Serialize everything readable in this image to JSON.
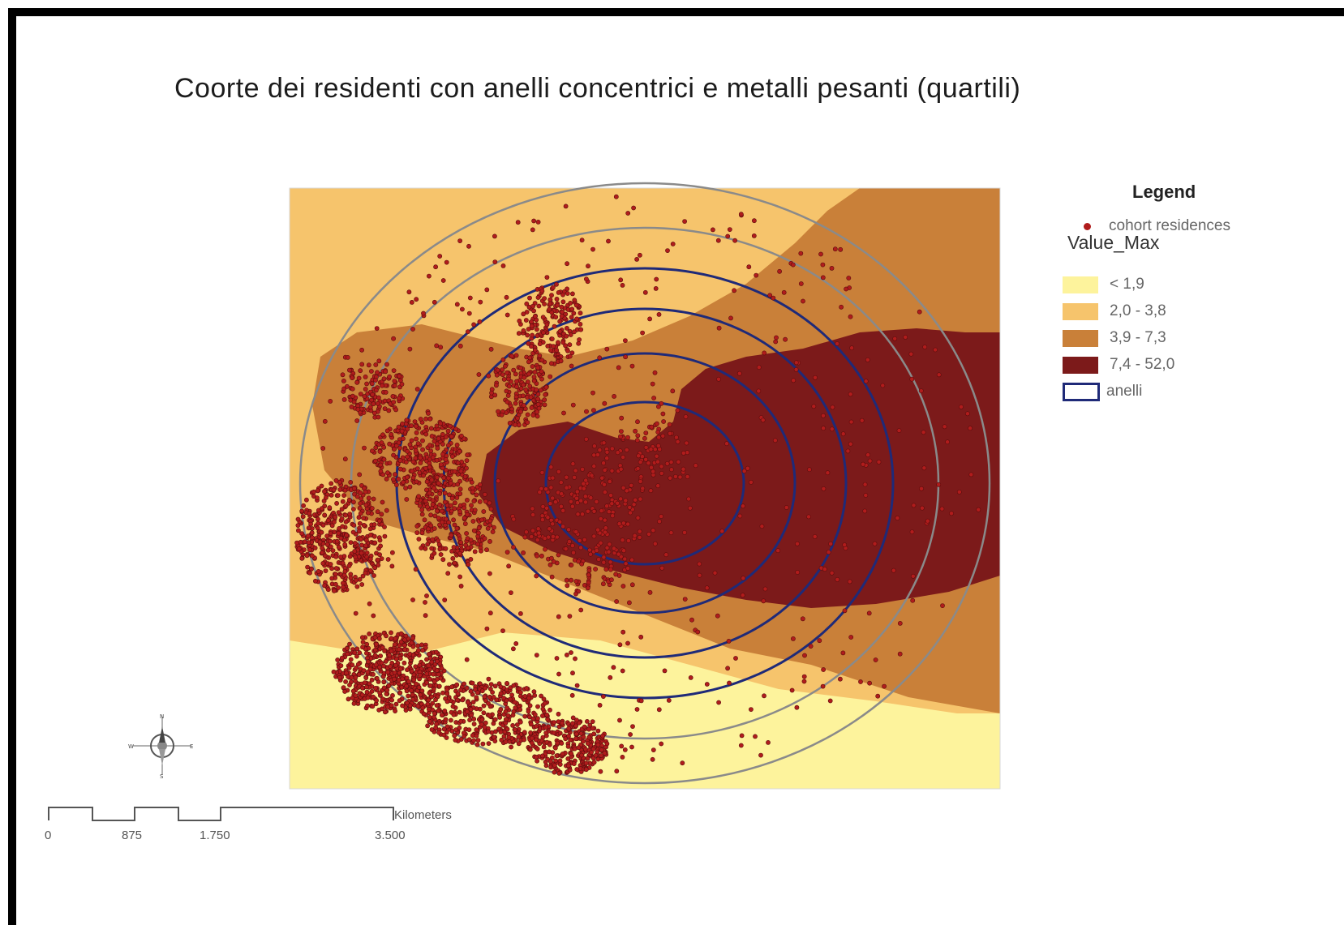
{
  "title": "Coorte dei residenti con anelli concentrici e metalli pesanti (quartili)",
  "legend": {
    "title": "Legend",
    "points_label": "cohort residences",
    "field_name": "Value_Max",
    "classes": [
      {
        "label": "< 1,9",
        "color": "#fdf39c"
      },
      {
        "label": "2,0 - 3,8",
        "color": "#f6c46c"
      },
      {
        "label": "3,9 - 7,3",
        "color": "#c98039"
      },
      {
        "label": "7,4 - 52,0",
        "color": "#7c1a1a"
      }
    ],
    "rings_label": "anelli",
    "point_color": "#b01c1c",
    "ring_inner_color": "#1f2a78",
    "ring_outer_color": "#8a8a8a"
  },
  "scale": {
    "unit": "Kilometers",
    "ticks": [
      "0",
      "875",
      "1.750",
      "3.500"
    ]
  },
  "north_arrow": {
    "icon": "compass-rose-icon",
    "letters": [
      "N",
      "E",
      "S",
      "W"
    ]
  }
}
